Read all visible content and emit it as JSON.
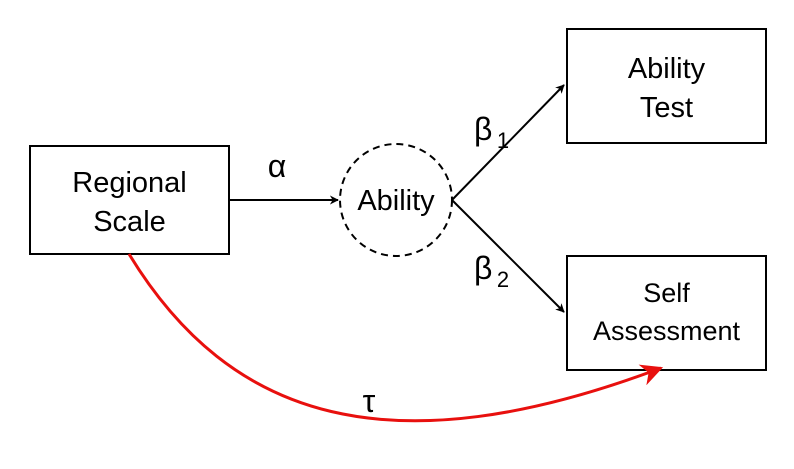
{
  "nodes": {
    "regional_scale": {
      "line1": "Regional",
      "line2": "Scale"
    },
    "ability": {
      "label": "Ability"
    },
    "ability_test": {
      "line1": "Ability",
      "line2": "Test"
    },
    "self_assessment": {
      "line1": "Self",
      "line2": "Assessment"
    }
  },
  "edges": {
    "alpha": {
      "symbol": "α"
    },
    "beta1": {
      "symbol": "β",
      "subscript": "1"
    },
    "beta2": {
      "symbol": "β",
      "subscript": "2"
    },
    "tau": {
      "symbol": "τ"
    }
  },
  "colors": {
    "stroke": "#000000",
    "direct_effect": "#e8100e",
    "background": "#ffffff"
  }
}
